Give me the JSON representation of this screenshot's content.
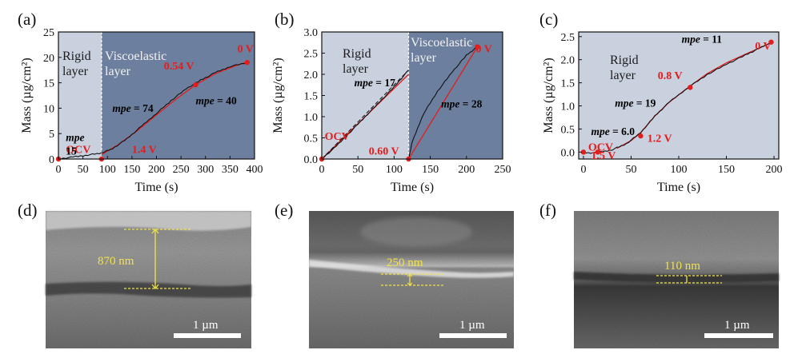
{
  "panel_labels": [
    "(a)",
    "(b)",
    "(c)",
    "(d)",
    "(e)",
    "(f)"
  ],
  "colors": {
    "light_region": "#c9d0de",
    "dark_region": "#6d7f9e",
    "fit_line": "#e31d1d",
    "data_line": "#111111",
    "marker": "#e31d1d",
    "thickness": "#f2e34a"
  },
  "chart_data": [
    {
      "type": "line",
      "panel": "(a)",
      "xlabel": "Time  (s)",
      "ylabel": "Mass (µg/cm²)",
      "xlim": [
        0,
        400
      ],
      "ylim": [
        0,
        25
      ],
      "xticks": [
        0,
        50,
        100,
        150,
        200,
        250,
        300,
        350,
        400
      ],
      "yticks": [
        0,
        5,
        10,
        15,
        20,
        25
      ],
      "boundary_x": 88,
      "regions": [
        {
          "label_lines": [
            "Rigid",
            "layer"
          ]
        },
        {
          "label_lines": [
            "Viscoelastic",
            "layer"
          ]
        }
      ],
      "series": [
        {
          "name": "measured",
          "x": [
            0,
            30,
            60,
            88,
            110,
            140,
            170,
            200,
            230,
            260,
            290,
            320,
            350,
            385
          ],
          "y": [
            0,
            0.4,
            0.8,
            1.2,
            2.0,
            4.0,
            6.5,
            9.0,
            11.5,
            13.8,
            15.5,
            17.0,
            18.2,
            19.0
          ]
        }
      ],
      "fit_line": {
        "x": [
          88,
          120,
          160,
          200,
          240,
          280,
          320,
          360,
          385
        ],
        "y": [
          0.9,
          2.7,
          5.5,
          8.7,
          11.8,
          14.6,
          16.8,
          18.3,
          19.1
        ]
      },
      "markers": [
        {
          "x": 0,
          "y": 0
        },
        {
          "x": 88,
          "y": 0
        },
        {
          "x": 280,
          "y": 14.6
        },
        {
          "x": 385,
          "y": 19.0
        }
      ],
      "point_labels": [
        {
          "text": "OCV",
          "x": 15,
          "y": 1.2
        },
        {
          "text": "1.4 V",
          "x": 150,
          "y": 1.2
        },
        {
          "text": "0.54 V",
          "x": 215,
          "y": 17.6
        },
        {
          "text": "0 V",
          "x": 365,
          "y": 21.0
        }
      ],
      "mpe_labels": [
        {
          "label": "mpe",
          "value": "15",
          "x": 15,
          "y": 3.5
        },
        {
          "label": "mpe",
          "value": "= 74",
          "x": 110,
          "y": 9.3
        },
        {
          "label": "mpe",
          "value": "= 40",
          "x": 280,
          "y": 10.8
        }
      ]
    },
    {
      "type": "line",
      "panel": "(b)",
      "xlabel": "Time  (s)",
      "ylabel": "Mass (µg/cm²)",
      "xlim": [
        0,
        250
      ],
      "ylim": [
        0,
        3.0
      ],
      "xticks": [
        0,
        50,
        100,
        150,
        200,
        250
      ],
      "yticks": [
        0.0,
        0.5,
        1.0,
        1.5,
        2.0,
        2.5,
        3.0
      ],
      "boundary_x": 120,
      "regions": [
        {
          "label_lines": [
            "Rigid",
            "layer"
          ]
        },
        {
          "label_lines": [
            "Viscoelastic",
            "layer"
          ]
        }
      ],
      "series": [
        {
          "name": "measured rigid",
          "x": [
            0,
            20,
            40,
            60,
            80,
            100,
            120
          ],
          "y": [
            0,
            0.3,
            0.65,
            1.0,
            1.35,
            1.7,
            2.1
          ]
        },
        {
          "name": "measured viscoelastic",
          "x": [
            120,
            125,
            140,
            160,
            180,
            200,
            215
          ],
          "y": [
            0,
            0.4,
            1.05,
            1.6,
            2.05,
            2.45,
            2.65
          ]
        }
      ],
      "fit_line": {
        "segments": [
          {
            "x": [
              0,
              120
            ],
            "y": [
              0,
              2.0
            ]
          },
          {
            "x": [
              120,
              215
            ],
            "y": [
              0,
              2.65
            ]
          }
        ]
      },
      "markers": [
        {
          "x": 0,
          "y": 0
        },
        {
          "x": 120,
          "y": 0
        },
        {
          "x": 215,
          "y": 2.65
        }
      ],
      "point_labels": [
        {
          "text": "OCV",
          "x": 4,
          "y": 0.45
        },
        {
          "text": "0.60 V",
          "x": 65,
          "y": 0.1
        },
        {
          "text": "0 V",
          "x": 213,
          "y": 2.52
        }
      ],
      "mpe_labels": [
        {
          "label": "mpe",
          "value": "= 17",
          "x": 45,
          "y": 1.72
        },
        {
          "label": "mpe",
          "value": "= 28",
          "x": 165,
          "y": 1.22
        }
      ]
    },
    {
      "type": "line",
      "panel": "(c)",
      "xlabel": "Time  (s)",
      "ylabel": "Mass (µg/cm²)",
      "xlim": [
        -5,
        205
      ],
      "ylim": [
        -0.15,
        2.6
      ],
      "xticks": [
        0,
        50,
        100,
        150,
        200
      ],
      "yticks": [
        0.0,
        0.5,
        1.0,
        1.5,
        2.0,
        2.5
      ],
      "regions": [
        {
          "label_lines": [
            "Rigid",
            "layer"
          ]
        }
      ],
      "series": [
        {
          "name": "measured",
          "x": [
            0,
            15,
            30,
            45,
            60,
            75,
            90,
            110,
            130,
            150,
            170,
            185,
            197
          ],
          "y": [
            -0.02,
            -0.01,
            0.05,
            0.18,
            0.42,
            0.78,
            1.08,
            1.4,
            1.68,
            1.9,
            2.1,
            2.25,
            2.38
          ]
        }
      ],
      "fit_line": {
        "x": [
          35,
          50,
          60,
          75,
          90,
          110,
          130,
          150,
          170,
          190,
          197
        ],
        "y": [
          0.08,
          0.25,
          0.42,
          0.78,
          1.08,
          1.4,
          1.7,
          1.93,
          2.12,
          2.3,
          2.37
        ]
      },
      "markers": [
        {
          "x": 0,
          "y": 0
        },
        {
          "x": 15,
          "y": 0
        },
        {
          "x": 60,
          "y": 0.35
        },
        {
          "x": 112,
          "y": 1.4
        },
        {
          "x": 197,
          "y": 2.38
        }
      ],
      "point_labels": [
        {
          "text": "OCV",
          "x": 5,
          "y": 0.03
        },
        {
          "text": "1.5 V",
          "x": 8,
          "y": -0.15
        },
        {
          "text": "1.2 V",
          "x": 67,
          "y": 0.22
        },
        {
          "text": "0.8 V",
          "x": 78,
          "y": 1.58
        },
        {
          "text": "0 V",
          "x": 180,
          "y": 2.22
        }
      ],
      "mpe_labels": [
        {
          "label": "mpe",
          "value": "= 6.0",
          "x": 8,
          "y": 0.37
        },
        {
          "label": "mpe",
          "value": "= 19",
          "x": 33,
          "y": 0.98
        },
        {
          "label": "mpe",
          "value": "= 11",
          "x": 103,
          "y": 2.37
        }
      ]
    }
  ],
  "micrographs": [
    {
      "panel": "(d)",
      "thickness": "870 nm",
      "scale_bar": "1 µm"
    },
    {
      "panel": "(e)",
      "thickness": "250 nm",
      "scale_bar": "1 µm"
    },
    {
      "panel": "(f)",
      "thickness": "110 nm",
      "scale_bar": "1 µm"
    }
  ]
}
